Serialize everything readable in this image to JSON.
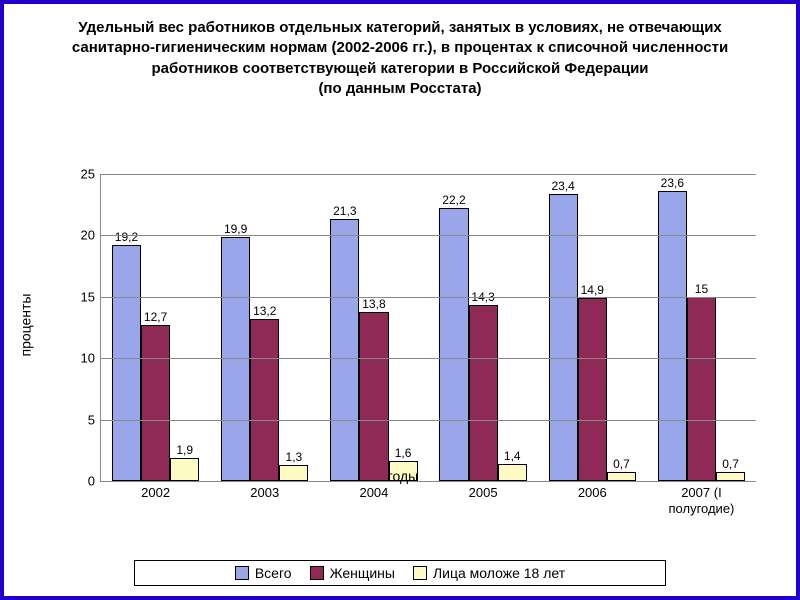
{
  "chart": {
    "type": "bar",
    "title": "Удельный вес работников отдельных категорий, занятых в условиях, не отвечающих санитарно-гигиеническим нормам (2002-2006 гг.), в процентах к списочной численности работников соответствующей категории в Российской Федерации\n(по данным Росстата)",
    "title_fontsize": 15,
    "y_label": "проценты",
    "x_label": "годы",
    "axis_fontsize": 14,
    "tick_fontsize": 13,
    "value_label_fontsize": 12,
    "ylim": [
      0,
      25
    ],
    "ytick_step": 5,
    "yticks": [
      0,
      5,
      10,
      15,
      20,
      25
    ],
    "frame_color": "#2200cc",
    "grid_color": "#888888",
    "background": "#ffffff",
    "categories": [
      "2002",
      "2003",
      "2004",
      "2005",
      "2006",
      "2007 (I полугодие)"
    ],
    "series": [
      {
        "name": "Всего",
        "color": "#9aa6ea",
        "values": [
          19.2,
          19.9,
          21.3,
          22.2,
          23.4,
          23.6
        ],
        "labels": [
          "19,2",
          "19,9",
          "21,3",
          "22,2",
          "23,4",
          "23,6"
        ]
      },
      {
        "name": "Женщины",
        "color": "#8e2a55",
        "values": [
          12.7,
          13.2,
          13.8,
          14.3,
          14.9,
          15.0
        ],
        "labels": [
          "12,7",
          "13,2",
          "13,8",
          "14,3",
          "14,9",
          "15"
        ]
      },
      {
        "name": "Лица моложе 18 лет",
        "color": "#fdfac3",
        "values": [
          1.9,
          1.3,
          1.6,
          1.4,
          0.7,
          0.7
        ],
        "labels": [
          "1,9",
          "1,3",
          "1,6",
          "1,4",
          "0,7",
          "0,7"
        ]
      }
    ],
    "legend_border": "#000000",
    "bar_border": "#000000"
  }
}
